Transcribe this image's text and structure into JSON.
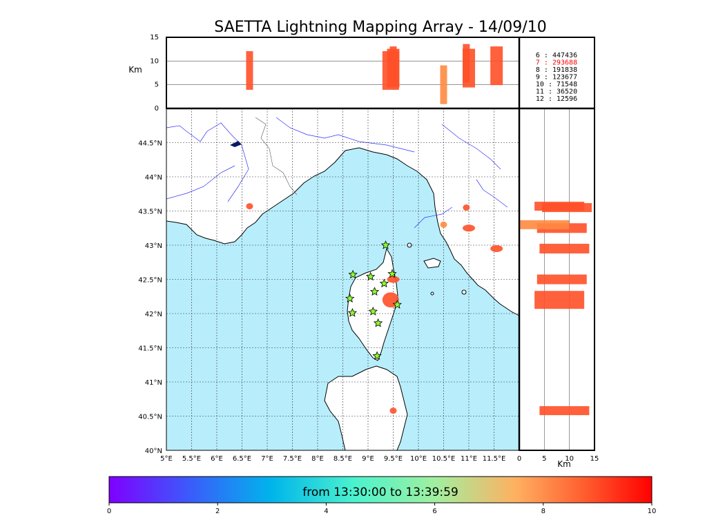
{
  "title": "SAETTA Lightning Mapping Array - 14/09/10",
  "chart_data": {
    "type": "scatter",
    "title": "SAETTA Lightning Mapping Array - 14/09/10",
    "map": {
      "xlim": [
        5.0,
        12.0
      ],
      "ylim": [
        40.0,
        45.0
      ],
      "x_ticks": [
        "5°E",
        "5.5°E",
        "6°E",
        "6.5°E",
        "7°E",
        "7.5°E",
        "8°E",
        "8.5°E",
        "9°E",
        "9.5°E",
        "10°E",
        "10.5°E",
        "11°E",
        "11.5°E"
      ],
      "x_tick_values": [
        5.0,
        5.5,
        6.0,
        6.5,
        7.0,
        7.5,
        8.0,
        8.5,
        9.0,
        9.5,
        10.0,
        10.5,
        11.0,
        11.5
      ],
      "y_ticks": [
        "40°N",
        "40.5°N",
        "41°N",
        "41.5°N",
        "42°N",
        "42.5°N",
        "43°N",
        "43.5°N",
        "44°N",
        "44.5°N"
      ],
      "y_tick_values": [
        40.0,
        40.5,
        41.0,
        41.5,
        42.0,
        42.5,
        43.0,
        43.5,
        44.0,
        44.5
      ],
      "grid": true,
      "sea_color": "#b8eefc"
    },
    "top_panel": {
      "ylabel": "Km",
      "ylim": [
        0,
        15
      ],
      "y_ticks": [
        "0",
        "5",
        "10",
        "15"
      ],
      "y_tick_values": [
        0,
        5,
        10,
        15
      ]
    },
    "right_panel": {
      "xlabel": "Km",
      "xlim": [
        0,
        15
      ],
      "x_ticks": [
        "0",
        "5",
        "10",
        "15"
      ],
      "x_tick_values": [
        0,
        5,
        10,
        15
      ]
    },
    "legend": [
      {
        "label": "6 :  447436",
        "color": "#000000"
      },
      {
        "label": "7 :  293688",
        "color": "#ff0000"
      },
      {
        "label": "8 :  191838",
        "color": "#000000"
      },
      {
        "label": "9 :  123677",
        "color": "#000000"
      },
      {
        "label": "10 :   71548",
        "color": "#000000"
      },
      {
        "label": "11 :   36520",
        "color": "#000000"
      },
      {
        "label": "12 :   12596",
        "color": "#000000"
      }
    ],
    "stations": [
      {
        "lon": 9.35,
        "lat": 43.0
      },
      {
        "lon": 8.7,
        "lat": 42.57
      },
      {
        "lon": 9.05,
        "lat": 42.54
      },
      {
        "lon": 9.48,
        "lat": 42.58
      },
      {
        "lon": 9.32,
        "lat": 42.44
      },
      {
        "lon": 9.13,
        "lat": 42.32
      },
      {
        "lon": 8.64,
        "lat": 42.22
      },
      {
        "lon": 9.58,
        "lat": 42.13
      },
      {
        "lon": 9.1,
        "lat": 42.03
      },
      {
        "lon": 8.69,
        "lat": 42.01
      },
      {
        "lon": 9.2,
        "lat": 41.86
      },
      {
        "lon": 9.18,
        "lat": 41.38
      }
    ],
    "clusters": [
      {
        "lon": 6.65,
        "lat": 43.57,
        "alt": 8.0,
        "size": "small",
        "color": "#ff5028"
      },
      {
        "lon": 9.5,
        "lat": 42.5,
        "alt": 8.5,
        "size": "medium",
        "color": "#ff5028"
      },
      {
        "lon": 9.45,
        "lat": 42.2,
        "alt": 8.0,
        "size": "large",
        "color": "#ff5028"
      },
      {
        "lon": 9.5,
        "lat": 40.58,
        "alt": 9.0,
        "size": "small",
        "color": "#ff5028"
      },
      {
        "lon": 10.95,
        "lat": 43.55,
        "alt": 9.5,
        "size": "small",
        "color": "#ff5028"
      },
      {
        "lon": 11.0,
        "lat": 43.25,
        "alt": 8.5,
        "size": "medium",
        "color": "#ff5028"
      },
      {
        "lon": 11.55,
        "lat": 42.95,
        "alt": 9.0,
        "size": "medium",
        "color": "#ff5028"
      },
      {
        "lon": 10.5,
        "lat": 43.3,
        "alt": 5.0,
        "size": "small",
        "color": "#ff8a40"
      }
    ],
    "colorbar": {
      "label": "from 13:30:00 to 13:39:59",
      "min": 0,
      "max": 10,
      "ticks": [
        "0",
        "2",
        "4",
        "6",
        "8",
        "10"
      ],
      "tick_values": [
        0,
        2,
        4,
        6,
        8,
        10
      ],
      "colors": [
        "#7f00ff",
        "#3a5cfb",
        "#00b5eb",
        "#4af2ce",
        "#a0f0a0",
        "#ffb060",
        "#ff5a2d",
        "#ff0000"
      ]
    }
  }
}
